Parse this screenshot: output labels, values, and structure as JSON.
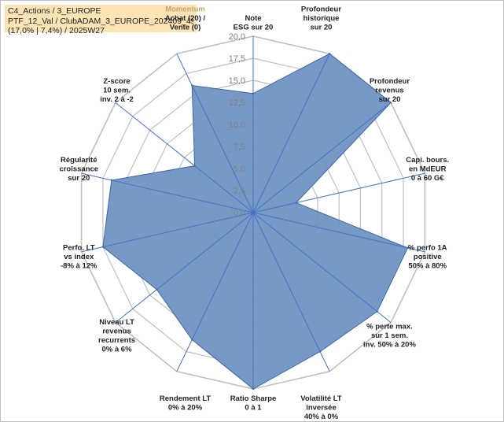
{
  "info": {
    "line1": "C4_Actions / 3_EUROPE",
    "line2": "PTF_12_Val / ClubADAM_3_EUROPE_202409_4spr10",
    "line3": "(17,0% | 7,4%) / 2025W27"
  },
  "colors": {
    "fill": "#6f94c2",
    "stroke": "#3f66a4",
    "grid": "#bfbfbf",
    "spoke": "#4472c4",
    "highlight_label": "#c9a36a",
    "info_bg": "#fce4b4"
  },
  "chart_data": {
    "type": "radar",
    "rmin": 0,
    "rmax": 20,
    "tick_step": 2.5,
    "tick_labels": [
      "0,0",
      "2,5",
      "5,0",
      "7,5",
      "10,0",
      "12,5",
      "15,0",
      "17,5",
      "20,0"
    ],
    "grid": true,
    "legend": "none",
    "axes": [
      {
        "lines": [
          "Note",
          "ESG sur 20"
        ],
        "value": 13.5
      },
      {
        "lines": [
          "Profondeur",
          "historique",
          "sur 20"
        ],
        "value": 20
      },
      {
        "lines": [
          "Profondeur",
          "revenus",
          "sur 20"
        ],
        "value": 20
      },
      {
        "lines": [
          "Capi. bours.",
          "en MdEUR",
          "0 à 60 G€"
        ],
        "value": 5
      },
      {
        "lines": [
          "% perfo 1A",
          "positive",
          "50% à 80%"
        ],
        "value": 18
      },
      {
        "lines": [
          "% perte max.",
          "sur 1 sem.",
          "inv. 50% à 20%"
        ],
        "value": 18
      },
      {
        "lines": [
          "Volatilité LT",
          "inversée",
          "40% à 0%"
        ],
        "value": 17.5
      },
      {
        "lines": [
          "Ratio Sharpe",
          "0 à 1"
        ],
        "value": 20
      },
      {
        "lines": [
          "Rendement LT",
          "0% à 20%"
        ],
        "value": 16
      },
      {
        "lines": [
          "Niveau LT",
          "revenus",
          "recurrents",
          "0% à 6%"
        ],
        "value": 14
      },
      {
        "lines": [
          "Perfo. LT",
          "vs index",
          "-8% à 12%"
        ],
        "value": 17.5
      },
      {
        "lines": [
          "Régularité",
          "croissance",
          "sur 20"
        ],
        "value": 16.5
      },
      {
        "lines": [
          "Z-score",
          "10 sem.",
          "inv. 2 à -2"
        ],
        "value": 8.5
      },
      {
        "lines": [
          "Momentum",
          "Achat (20) /",
          "Vente (0)"
        ],
        "value": 16,
        "highlight_first": true
      }
    ]
  }
}
